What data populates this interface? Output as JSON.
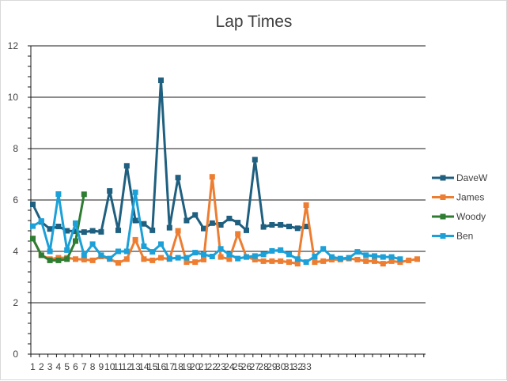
{
  "chart_data": {
    "type": "line",
    "title": "Lap Times",
    "xlabel": "",
    "ylabel": "",
    "ylim": [
      0,
      12
    ],
    "yticks": [
      0,
      2,
      4,
      6,
      8,
      10,
      12
    ],
    "xticks": [
      "1",
      "2",
      "3",
      "4",
      "5",
      "6",
      "7",
      "8",
      "9",
      "10",
      "11",
      "12",
      "13",
      "14",
      "15",
      "16",
      "17",
      "18",
      "19",
      "20",
      "21",
      "22",
      "23",
      "24",
      "25",
      "26",
      "27",
      "28",
      "29",
      "30",
      "31",
      "32",
      "33"
    ],
    "grid": "horizontal major lines on",
    "legend_position": "right",
    "series": [
      {
        "name": "DaveW",
        "color": "#1f5f7f",
        "values": [
          5.83,
          5.15,
          4.87,
          4.97,
          4.8,
          4.78,
          4.75,
          4.8,
          4.76,
          6.35,
          4.82,
          7.33,
          5.2,
          5.07,
          4.82,
          10.66,
          4.92,
          6.87,
          5.2,
          5.42,
          4.89,
          5.1,
          5.03,
          5.28,
          5.12,
          4.82,
          7.57,
          4.95,
          5.03,
          5.03,
          4.97,
          4.9,
          4.97
        ]
      },
      {
        "name": "James",
        "color": "#ed7d31",
        "values": [
          4.5,
          3.85,
          3.7,
          3.75,
          3.75,
          3.7,
          3.68,
          3.65,
          3.8,
          3.7,
          3.55,
          3.7,
          4.45,
          3.7,
          3.65,
          3.75,
          3.7,
          4.8,
          3.58,
          3.58,
          3.68,
          6.9,
          3.78,
          3.7,
          4.68,
          3.78,
          3.68,
          3.62,
          3.62,
          3.62,
          3.58,
          3.52,
          5.8,
          3.58,
          3.62,
          3.68,
          3.68,
          3.72,
          3.68,
          3.62,
          3.62,
          3.52,
          3.62,
          3.58,
          3.65,
          3.7
        ]
      },
      {
        "name": "Woody",
        "color": "#2e7d32",
        "values": [
          4.5,
          3.85,
          3.65,
          3.65,
          3.7,
          4.4,
          6.22
        ]
      },
      {
        "name": "Ben",
        "color": "#1ca0d8",
        "values": [
          4.98,
          5.18,
          4.0,
          6.23,
          4.05,
          5.1,
          3.85,
          4.28,
          3.85,
          3.72,
          4.0,
          4.0,
          6.3,
          4.2,
          3.98,
          4.28,
          3.72,
          3.75,
          3.75,
          3.95,
          3.88,
          3.8,
          4.1,
          3.88,
          3.72,
          3.78,
          3.82,
          3.88,
          4.02,
          4.05,
          3.88,
          3.7,
          3.58,
          3.8,
          4.1,
          3.78,
          3.72,
          3.75,
          3.98,
          3.85,
          3.82,
          3.78,
          3.78,
          3.7
        ]
      }
    ]
  }
}
